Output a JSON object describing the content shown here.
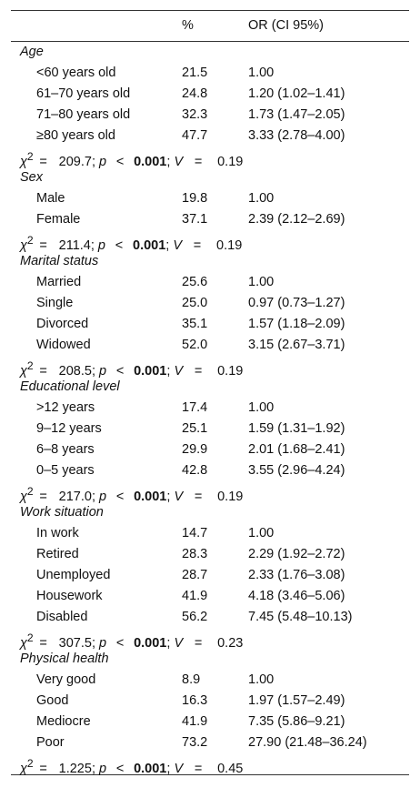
{
  "header": {
    "label": "",
    "pct": "%",
    "or": "OR (CI 95%)"
  },
  "sections": [
    {
      "title": "Age",
      "rows": [
        {
          "label": "<60 years old",
          "pct": "21.5",
          "or": "1.00"
        },
        {
          "label": "61–70 years old",
          "pct": "24.8",
          "or": "1.20 (1.02–1.41)"
        },
        {
          "label": "71–80 years old",
          "pct": "32.3",
          "or": "1.73 (1.47–2.05)"
        },
        {
          "label": "≥80 years old",
          "pct": "47.7",
          "or": "3.33 (2.78–4.00)"
        }
      ],
      "stat": {
        "chi": "209.7",
        "p": "0.001",
        "v": "0.19"
      }
    },
    {
      "title": "Sex",
      "rows": [
        {
          "label": "Male",
          "pct": "19.8",
          "or": "1.00"
        },
        {
          "label": "Female",
          "pct": "37.1",
          "or": "2.39 (2.12–2.69)"
        }
      ],
      "stat": {
        "chi": "211.4",
        "p": "0.001",
        "v": "0.19"
      }
    },
    {
      "title": "Marital status",
      "rows": [
        {
          "label": "Married",
          "pct": "25.6",
          "or": "1.00"
        },
        {
          "label": "Single",
          "pct": "25.0",
          "or": "0.97 (0.73–1.27)"
        },
        {
          "label": "Divorced",
          "pct": "35.1",
          "or": "1.57 (1.18–2.09)"
        },
        {
          "label": "Widowed",
          "pct": "52.0",
          "or": "3.15 (2.67–3.71)"
        }
      ],
      "stat": {
        "chi": "208.5",
        "p": "0.001",
        "v": "0.19"
      }
    },
    {
      "title": "Educational level",
      "rows": [
        {
          "label": ">12 years",
          "pct": "17.4",
          "or": "1.00"
        },
        {
          "label": "9–12 years",
          "pct": "25.1",
          "or": "1.59 (1.31–1.92)"
        },
        {
          "label": "6–8 years",
          "pct": "29.9",
          "or": "2.01 (1.68–2.41)"
        },
        {
          "label": "0–5 years",
          "pct": "42.8",
          "or": "3.55 (2.96–4.24)"
        }
      ],
      "stat": {
        "chi": "217.0",
        "p": "0.001",
        "v": "0.19"
      }
    },
    {
      "title": "Work situation",
      "rows": [
        {
          "label": "In work",
          "pct": "14.7",
          "or": "1.00"
        },
        {
          "label": "Retired",
          "pct": "28.3",
          "or": "2.29 (1.92–2.72)"
        },
        {
          "label": "Unemployed",
          "pct": "28.7",
          "or": "2.33 (1.76–3.08)"
        },
        {
          "label": "Housework",
          "pct": "41.9",
          "or": "4.18 (3.46–5.06)"
        },
        {
          "label": "Disabled",
          "pct": "56.2",
          "or": "7.45 (5.48–10.13)"
        }
      ],
      "stat": {
        "chi": "307.5",
        "p": "0.001",
        "v": "0.23"
      }
    },
    {
      "title": "Physical health",
      "rows": [
        {
          "label": "Very good",
          "pct": "8.9",
          "or": "1.00"
        },
        {
          "label": "Good",
          "pct": "16.3",
          "or": "1.97 (1.57–2.49)"
        },
        {
          "label": "Mediocre",
          "pct": "41.9",
          "or": "7.35 (5.86–9.21)"
        },
        {
          "label": "Poor",
          "pct": "73.2",
          "or": "27.90 (21.48–36.24)"
        }
      ],
      "stat": {
        "chi": "1.225",
        "p": "0.001",
        "v": "0.45"
      }
    }
  ]
}
